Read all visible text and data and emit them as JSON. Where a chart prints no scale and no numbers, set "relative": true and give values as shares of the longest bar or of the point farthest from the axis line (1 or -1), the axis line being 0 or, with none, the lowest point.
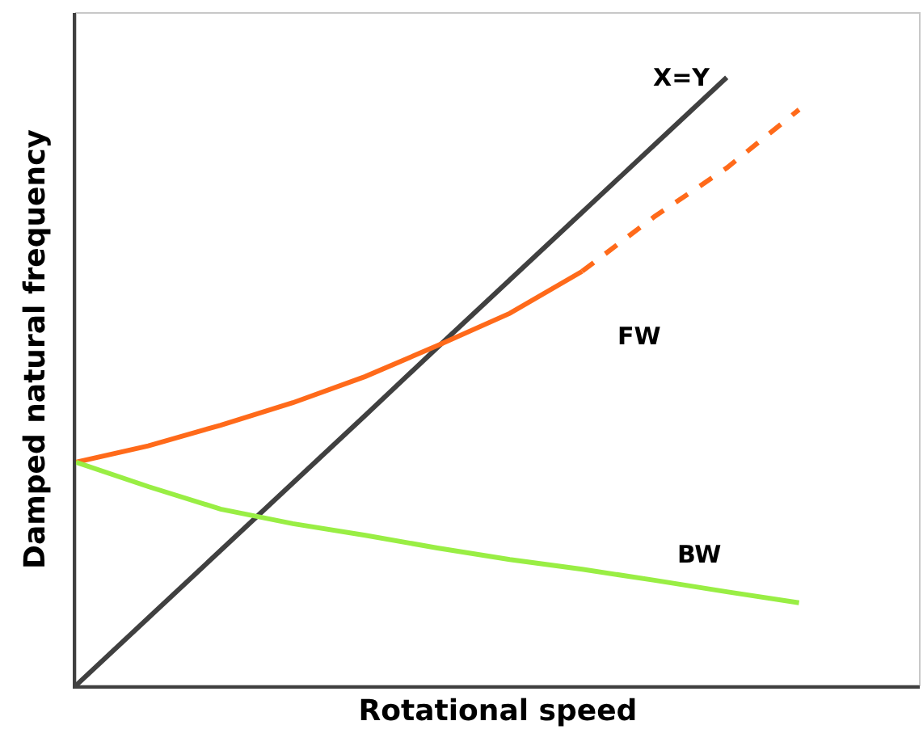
{
  "chart_data": {
    "type": "line",
    "relative": true,
    "xlabel": "Rotational speed",
    "ylabel": "Damped natural frequency",
    "categories": [
      null,
      null,
      null,
      null,
      null,
      null,
      null,
      null,
      null,
      null,
      null
    ],
    "grid": false,
    "legend": false,
    "marker": "none",
    "series": [
      {
        "name": "X=Y",
        "color": "#404040",
        "values": [
          0,
          0.111,
          0.222,
          0.333,
          0.444,
          0.556,
          0.667,
          0.778,
          0.889,
          1.0,
          null
        ]
      },
      {
        "name": "FW",
        "color": "#ff6a1a",
        "values": [
          0.367,
          0.394,
          0.428,
          0.465,
          0.508,
          0.559,
          0.612,
          0.681,
          null,
          null,
          null
        ]
      },
      {
        "color": "#ff6a1a",
        "line_style": "dashed",
        "values": [
          null,
          null,
          null,
          null,
          null,
          null,
          null,
          0.681,
          0.771,
          0.851,
          0.947
        ]
      },
      {
        "name": "BW",
        "color": "#99ee44",
        "values": [
          0.367,
          0.327,
          0.29,
          0.266,
          0.247,
          0.226,
          0.207,
          0.191,
          0.173,
          0.154,
          0.136
        ]
      }
    ]
  }
}
